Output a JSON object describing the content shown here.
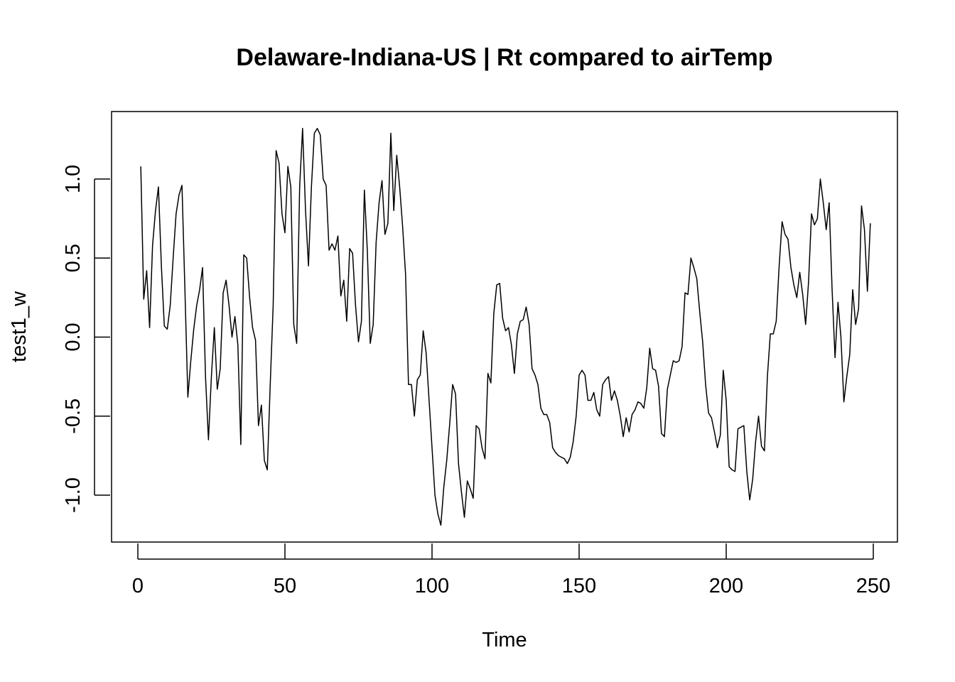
{
  "chart_data": {
    "type": "line",
    "title": "Delaware-Indiana-US | Rt compared to airTemp",
    "xlabel": "Time",
    "ylabel": "test1_w",
    "xlim": [
      0,
      250
    ],
    "ylim": [
      -1.25,
      1.35
    ],
    "x_ticks": [
      0,
      50,
      100,
      150,
      200,
      250
    ],
    "y_ticks": [
      -1.0,
      -0.5,
      0.0,
      0.5,
      1.0
    ],
    "x_tick_labels": [
      "0",
      "50",
      "100",
      "150",
      "200",
      "250"
    ],
    "y_tick_labels": [
      "-1.0",
      "-0.5",
      "0.0",
      "0.5",
      "1.0"
    ],
    "grid": false,
    "legend": "none",
    "line_color": "#000000",
    "series": [
      {
        "x_start": 1,
        "x_step": 1,
        "values": [
          1.08,
          0.24,
          0.42,
          0.06,
          0.58,
          0.8,
          0.95,
          0.45,
          0.07,
          0.05,
          0.2,
          0.5,
          0.78,
          0.9,
          0.96,
          0.3,
          -0.38,
          -0.15,
          0.05,
          0.2,
          0.3,
          0.44,
          -0.25,
          -0.65,
          -0.25,
          0.06,
          -0.33,
          -0.2,
          0.28,
          0.36,
          0.2,
          0.0,
          0.13,
          -0.05,
          -0.68,
          0.52,
          0.5,
          0.25,
          0.06,
          -0.02,
          -0.56,
          -0.43,
          -0.78,
          -0.84,
          -0.3,
          0.2,
          1.18,
          1.1,
          0.78,
          0.66,
          1.08,
          0.95,
          0.08,
          -0.04,
          0.95,
          1.32,
          0.8,
          0.45,
          0.95,
          1.29,
          1.32,
          1.28,
          1.0,
          0.96,
          0.55,
          0.59,
          0.55,
          0.64,
          0.26,
          0.36,
          0.1,
          0.56,
          0.53,
          0.2,
          -0.03,
          0.1,
          0.93,
          0.55,
          -0.04,
          0.08,
          0.6,
          0.85,
          0.99,
          0.65,
          0.72,
          1.29,
          0.8,
          1.15,
          0.95,
          0.7,
          0.4,
          -0.3,
          -0.3,
          -0.5,
          -0.27,
          -0.24,
          0.04,
          -0.1,
          -0.4,
          -0.7,
          -1.0,
          -1.12,
          -1.19,
          -0.95,
          -0.78,
          -0.55,
          -0.3,
          -0.36,
          -0.8,
          -0.98,
          -1.14,
          -0.91,
          -0.96,
          -1.02,
          -0.56,
          -0.58,
          -0.7,
          -0.77,
          -0.23,
          -0.29,
          0.15,
          0.33,
          0.34,
          0.12,
          0.04,
          0.06,
          -0.05,
          -0.23,
          0.02,
          0.1,
          0.11,
          0.19,
          0.08,
          -0.2,
          -0.24,
          -0.3,
          -0.45,
          -0.49,
          -0.49,
          -0.54,
          -0.7,
          -0.73,
          -0.75,
          -0.76,
          -0.77,
          -0.8,
          -0.76,
          -0.66,
          -0.5,
          -0.24,
          -0.21,
          -0.24,
          -0.4,
          -0.4,
          -0.35,
          -0.46,
          -0.5,
          -0.3,
          -0.27,
          -0.25,
          -0.4,
          -0.34,
          -0.4,
          -0.5,
          -0.63,
          -0.51,
          -0.6,
          -0.49,
          -0.46,
          -0.41,
          -0.42,
          -0.45,
          -0.32,
          -0.07,
          -0.2,
          -0.21,
          -0.31,
          -0.61,
          -0.63,
          -0.33,
          -0.24,
          -0.15,
          -0.16,
          -0.15,
          -0.06,
          0.28,
          0.27,
          0.5,
          0.44,
          0.37,
          0.16,
          -0.03,
          -0.3,
          -0.48,
          -0.51,
          -0.6,
          -0.7,
          -0.62,
          -0.21,
          -0.4,
          -0.82,
          -0.84,
          -0.85,
          -0.58,
          -0.57,
          -0.56,
          -0.85,
          -1.03,
          -0.9,
          -0.66,
          -0.5,
          -0.69,
          -0.72,
          -0.25,
          0.02,
          0.02,
          0.1,
          0.45,
          0.73,
          0.65,
          0.62,
          0.44,
          0.33,
          0.25,
          0.41,
          0.27,
          0.08,
          0.35,
          0.78,
          0.71,
          0.75,
          1.0,
          0.85,
          0.68,
          0.85,
          0.3,
          -0.13,
          0.22,
          0.0,
          -0.41,
          -0.25,
          -0.11,
          0.3,
          0.08,
          0.18,
          0.83,
          0.68,
          0.29,
          0.72
        ]
      }
    ]
  }
}
